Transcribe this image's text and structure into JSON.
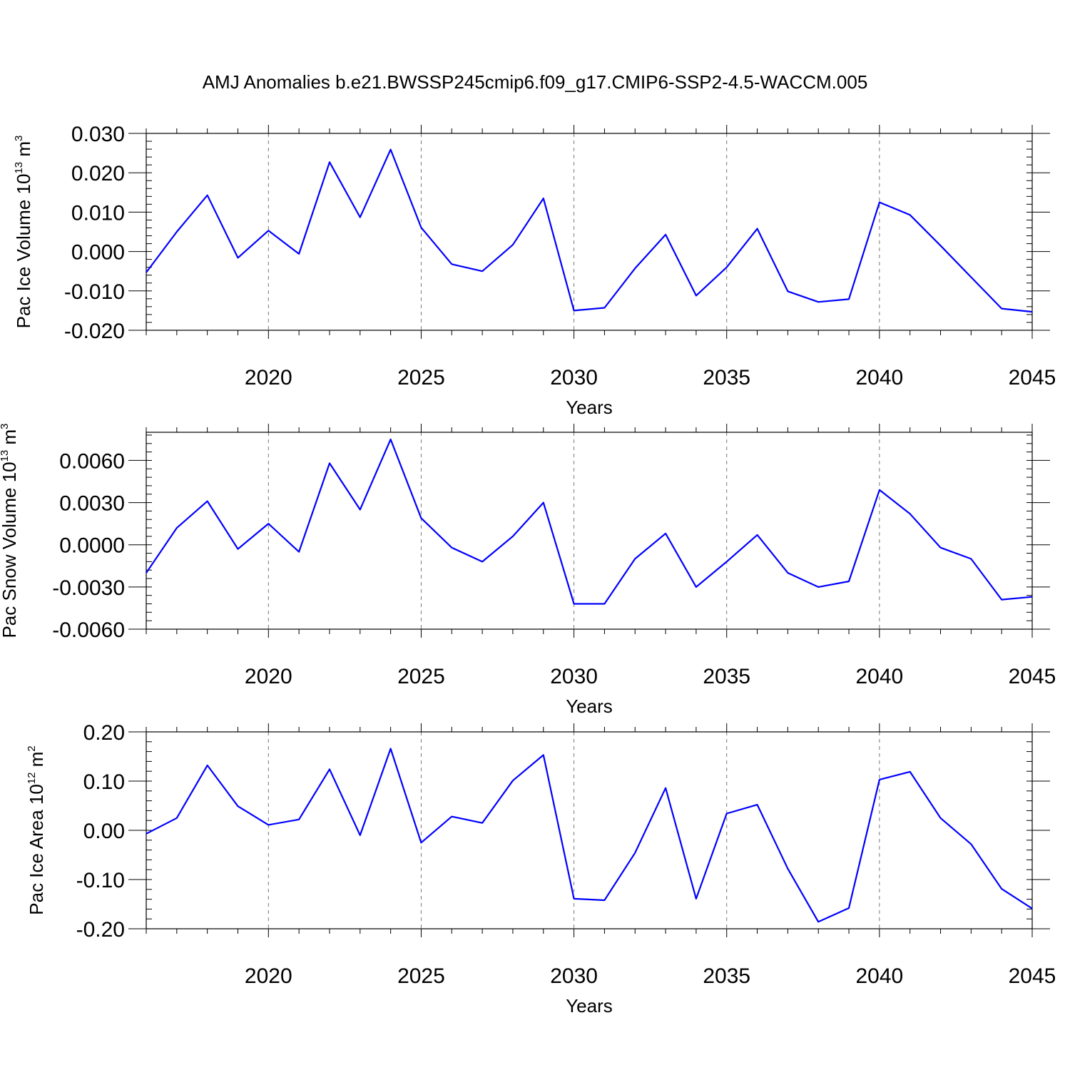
{
  "figure": {
    "title": "AMJ Anomalies b.e21.BWSSP245cmip6.f09_g17.CMIP6-SSP2-4.5-WACCM.005",
    "line_color": "#0000ff"
  },
  "chart_data": [
    {
      "type": "line",
      "title": "AMJ Anomalies b.e21.BWSSP245cmip6.f09_g17.CMIP6-SSP2-4.5-WACCM.005",
      "xlabel": "Years",
      "ylabel": {
        "text": "Pac Ice Volume 10",
        "exp": "13",
        "unit": " m",
        "unit_exp": "3"
      },
      "xlim": [
        2016,
        2045
      ],
      "ylim": [
        -0.02,
        0.03
      ],
      "yticks": [
        -0.02,
        -0.01,
        0.0,
        0.01,
        0.02,
        0.03
      ],
      "ytick_labels": [
        "-0.020",
        "-0.010",
        "0.000",
        "0.010",
        "0.020",
        "0.030"
      ],
      "xticks": [
        2020,
        2025,
        2030,
        2035,
        2040,
        2045
      ],
      "xtick_labels": [
        "2020",
        "2025",
        "2030",
        "2035",
        "2040",
        "2045"
      ],
      "grid": "dashed vertical at major x ticks",
      "x": [
        2016,
        2017,
        2018,
        2019,
        2020,
        2021,
        2022,
        2023,
        2024,
        2025,
        2026,
        2027,
        2028,
        2029,
        2030,
        2031,
        2032,
        2033,
        2034,
        2035,
        2036,
        2037,
        2038,
        2039,
        2040,
        2041,
        2042,
        2043,
        2044,
        2045
      ],
      "series": [
        {
          "name": "Pac Ice Volume",
          "values": [
            -0.0053,
            0.005,
            0.0143,
            -0.0016,
            0.0053,
            -0.0006,
            0.0227,
            0.0087,
            0.0259,
            0.0061,
            -0.0032,
            -0.005,
            0.0017,
            0.0135,
            -0.015,
            -0.0143,
            -0.0043,
            0.0043,
            -0.0112,
            -0.004,
            0.0058,
            -0.0101,
            -0.0128,
            -0.0121,
            0.0125,
            0.0093,
            0.0015,
            -0.0065,
            -0.0145,
            -0.0153
          ]
        }
      ]
    },
    {
      "type": "line",
      "xlabel": "Years",
      "ylabel": {
        "text": "Pac Snow Volume 10",
        "exp": "13",
        "unit": " m",
        "unit_exp": "3"
      },
      "xlim": [
        2016,
        2045
      ],
      "ylim": [
        -0.006,
        0.008
      ],
      "yticks": [
        -0.006,
        -0.003,
        0.0,
        0.003,
        0.006
      ],
      "ytick_labels": [
        "-0.0060",
        "-0.0030",
        "0.0000",
        "0.0030",
        "0.0060"
      ],
      "xticks": [
        2020,
        2025,
        2030,
        2035,
        2040,
        2045
      ],
      "xtick_labels": [
        "2020",
        "2025",
        "2030",
        "2035",
        "2040",
        "2045"
      ],
      "grid": "dashed vertical at major x ticks",
      "x": [
        2016,
        2017,
        2018,
        2019,
        2020,
        2021,
        2022,
        2023,
        2024,
        2025,
        2026,
        2027,
        2028,
        2029,
        2030,
        2031,
        2032,
        2033,
        2034,
        2035,
        2036,
        2037,
        2038,
        2039,
        2040,
        2041,
        2042,
        2043,
        2044,
        2045
      ],
      "series": [
        {
          "name": "Pac Snow Volume",
          "values": [
            -0.002,
            0.0012,
            0.0031,
            -0.0003,
            0.0015,
            -0.0005,
            0.0058,
            0.0025,
            0.0075,
            0.0019,
            -0.0002,
            -0.0012,
            0.0006,
            0.003,
            -0.0042,
            -0.0042,
            -0.001,
            0.0008,
            -0.003,
            -0.0012,
            0.0007,
            -0.002,
            -0.003,
            -0.0026,
            0.0039,
            0.0022,
            -0.0002,
            -0.001,
            -0.0039,
            -0.0037
          ]
        }
      ]
    },
    {
      "type": "line",
      "xlabel": "Years",
      "ylabel": {
        "text": "Pac Ice Area 10",
        "exp": "12",
        "unit": " m",
        "unit_exp": "2"
      },
      "xlim": [
        2016,
        2045
      ],
      "ylim": [
        -0.2,
        0.2
      ],
      "yticks": [
        -0.2,
        -0.1,
        0.0,
        0.1,
        0.2
      ],
      "ytick_labels": [
        "-0.20",
        "-0.10",
        "0.00",
        "0.10",
        "0.20"
      ],
      "xticks": [
        2020,
        2025,
        2030,
        2035,
        2040,
        2045
      ],
      "xtick_labels": [
        "2020",
        "2025",
        "2030",
        "2035",
        "2040",
        "2045"
      ],
      "grid": "dashed vertical at major x ticks",
      "x": [
        2016,
        2017,
        2018,
        2019,
        2020,
        2021,
        2022,
        2023,
        2024,
        2025,
        2026,
        2027,
        2028,
        2029,
        2030,
        2031,
        2032,
        2033,
        2034,
        2035,
        2036,
        2037,
        2038,
        2039,
        2040,
        2041,
        2042,
        2043,
        2044,
        2045
      ],
      "series": [
        {
          "name": "Pac Ice Area",
          "values": [
            -0.007,
            0.025,
            0.132,
            0.049,
            0.011,
            0.022,
            0.124,
            -0.01,
            0.166,
            -0.025,
            0.028,
            0.015,
            0.101,
            0.153,
            -0.139,
            -0.142,
            -0.046,
            0.086,
            -0.139,
            0.034,
            0.052,
            -0.078,
            -0.186,
            -0.158,
            0.103,
            0.119,
            0.025,
            -0.028,
            -0.119,
            -0.159
          ]
        }
      ]
    }
  ]
}
